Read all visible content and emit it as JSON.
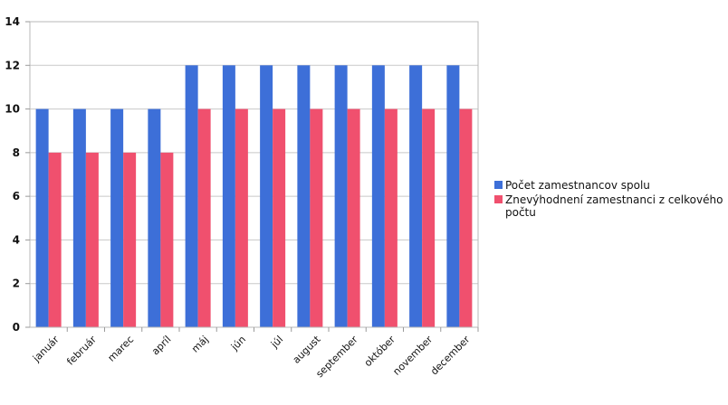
{
  "chart_data": {
    "type": "bar",
    "title": "",
    "xlabel": "",
    "ylabel": "",
    "ylim": [
      0,
      14
    ],
    "yticks": [
      0,
      2,
      4,
      6,
      8,
      10,
      12,
      14
    ],
    "grid": true,
    "legend_position": "right",
    "categories": [
      "január",
      "február",
      "marec",
      "apríl",
      "máj",
      "jún",
      "júl",
      "august",
      "september",
      "október",
      "november",
      "december"
    ],
    "series": [
      {
        "name": "Počet zamestnancov spolu",
        "color": "#3d6fd8",
        "values": [
          10,
          10,
          10,
          10,
          12,
          12,
          12,
          12,
          12,
          12,
          12,
          12
        ]
      },
      {
        "name": "Znevýhodnení zamestnanci z celkového počtu",
        "color": "#f0506e",
        "values": [
          8,
          8,
          8,
          8,
          10,
          10,
          10,
          10,
          10,
          10,
          10,
          10
        ]
      }
    ]
  }
}
